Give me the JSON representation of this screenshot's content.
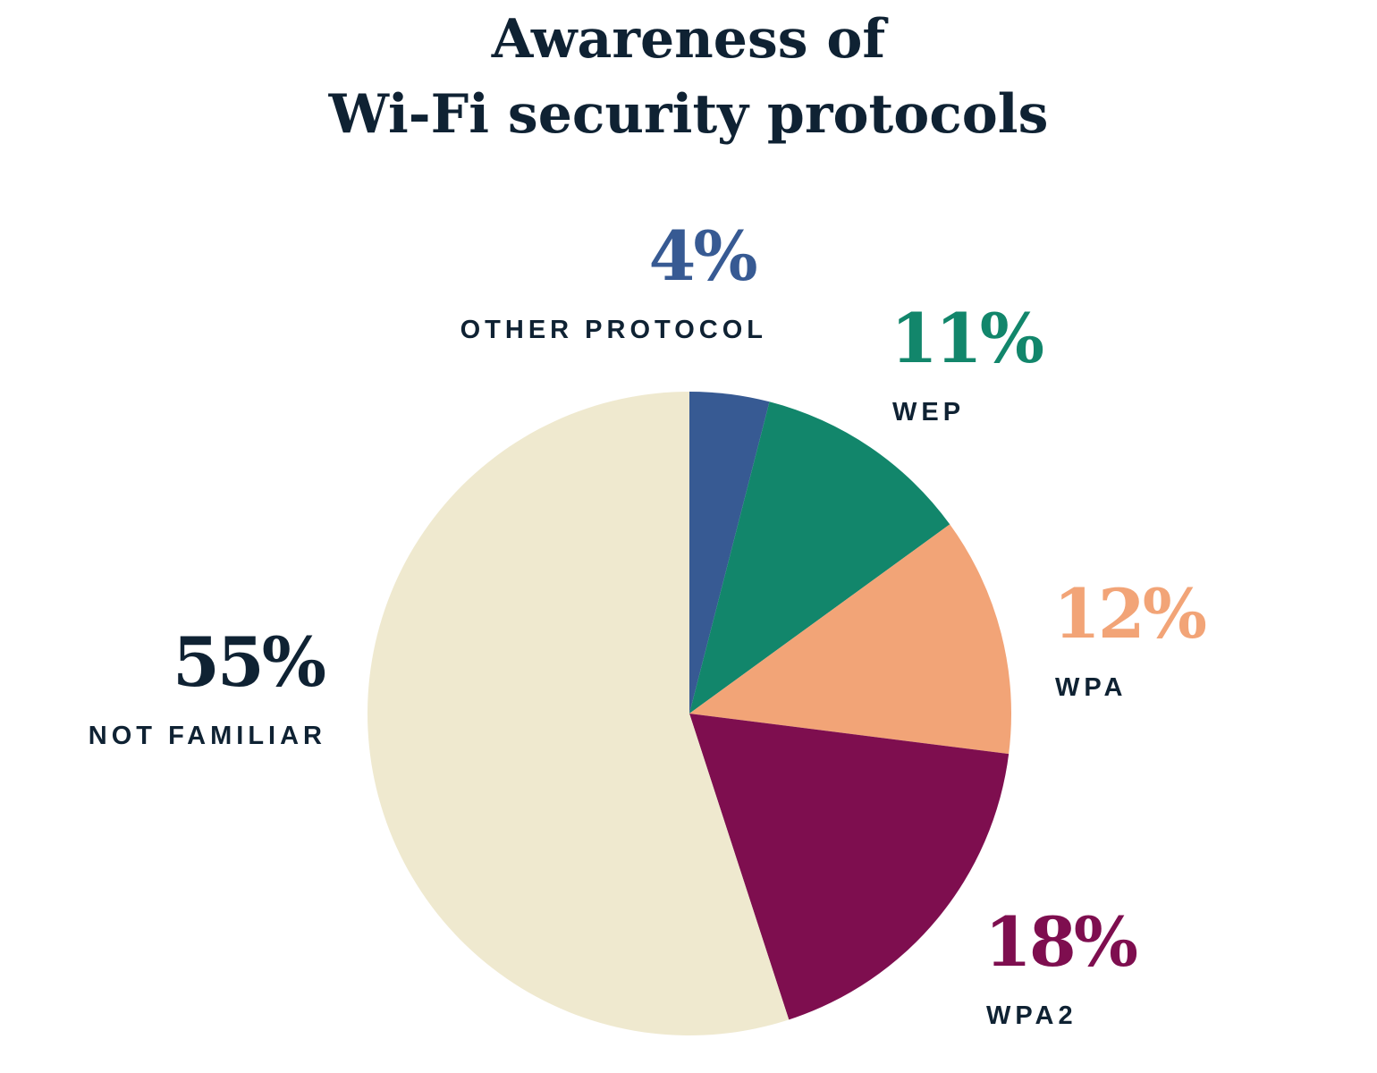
{
  "chart_data": {
    "type": "pie",
    "title": [
      "Awareness of",
      "Wi-Fi security protocols"
    ],
    "start": "top, clockwise",
    "slices": [
      {
        "label": "OTHER PROTOCOL",
        "value": 4,
        "display": "4%",
        "color": "#375a93"
      },
      {
        "label": "WEP",
        "value": 11,
        "display": "11%",
        "color": "#12866b"
      },
      {
        "label": "WPA",
        "value": 12,
        "display": "12%",
        "color": "#f2a477"
      },
      {
        "label": "WPA2",
        "value": 18,
        "display": "18%",
        "color": "#7e0e4f"
      },
      {
        "label": "NOT FAMILIAR",
        "value": 55,
        "display": "55%",
        "color": "#efe9cf",
        "label_color": "#0f2233"
      }
    ]
  }
}
